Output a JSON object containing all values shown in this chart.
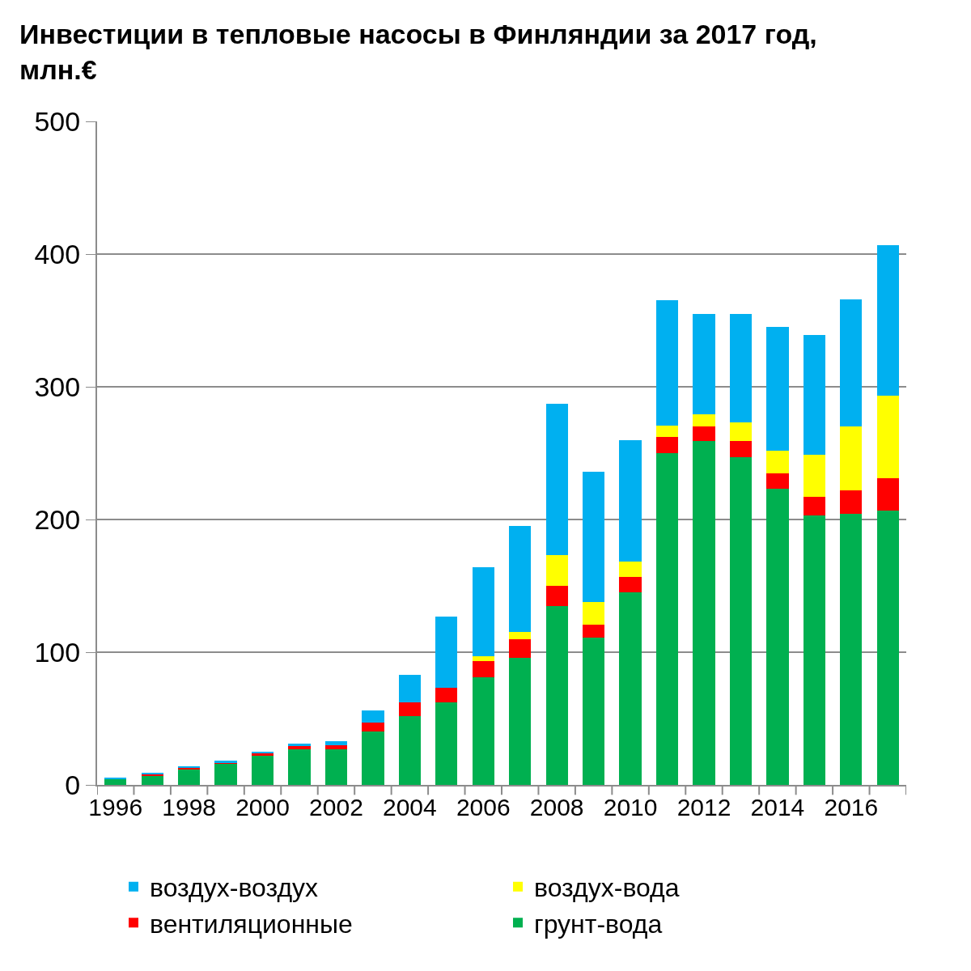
{
  "chart_data": {
    "type": "bar",
    "stacked": true,
    "title": "Инвестиции в тепловые насосы в Финляндии за 2017 год, млн.€",
    "categories": [
      "1996",
      null,
      "1998",
      null,
      "2000",
      null,
      "2002",
      null,
      "2004",
      null,
      "2006",
      null,
      "2008",
      null,
      "2010",
      null,
      "2012",
      null,
      "2014",
      null,
      "2016",
      null
    ],
    "series": [
      {
        "name": "грунт-вода",
        "color": "#00b050",
        "values": [
          4,
          7,
          12,
          16,
          22,
          27,
          27,
          40,
          52,
          62,
          81,
          96,
          135,
          111,
          145,
          250,
          259,
          247,
          223,
          203,
          204,
          207
        ]
      },
      {
        "name": "вентиляционные",
        "color": "#ff0000",
        "values": [
          null,
          1,
          1,
          1,
          2,
          2,
          3,
          7,
          10,
          11,
          12,
          14,
          15,
          10,
          12,
          12,
          11,
          12,
          12,
          14,
          18,
          24
        ]
      },
      {
        "name": "воздух-вода",
        "color": "#ffff00",
        "values": [
          0,
          0,
          0,
          0,
          0,
          0,
          0,
          0,
          0,
          0,
          4,
          5,
          23,
          17,
          11,
          9,
          9,
          14,
          17,
          32,
          48,
          62
        ]
      },
      {
        "name": "воздух-воздух",
        "color": "#00b0f0",
        "values": [
          1.5,
          1,
          1,
          1,
          1,
          2,
          3,
          9,
          21,
          54,
          67,
          80,
          114,
          98,
          92,
          94,
          76,
          82,
          93,
          90,
          96,
          114
        ]
      }
    ],
    "ylim": [
      0,
      500
    ],
    "yticks": [
      0,
      100,
      200,
      300,
      400,
      500
    ],
    "grid": "y",
    "legend": "bottom"
  }
}
